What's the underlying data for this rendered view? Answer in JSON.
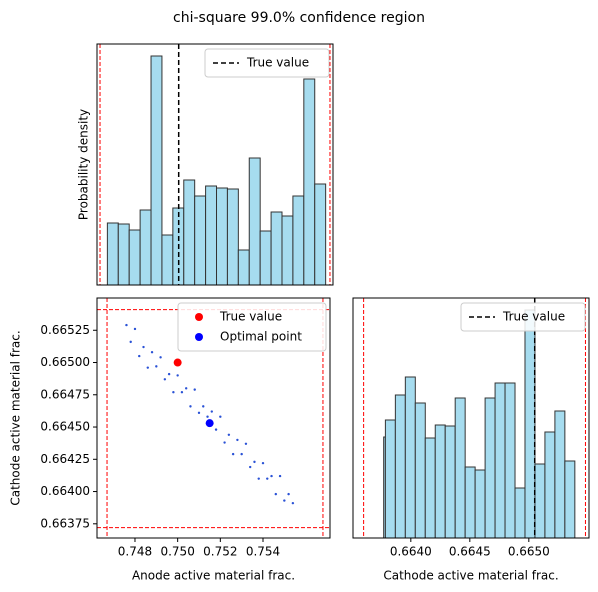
{
  "title": "chi-square 99.0% confidence region",
  "chart_data": [
    {
      "type": "histogram",
      "ylabel": "Probability density",
      "bins": [
        0.7467,
        0.747205,
        0.74771,
        0.748215,
        0.74872,
        0.749225,
        0.74973,
        0.750235,
        0.75074,
        0.751245,
        0.75175,
        0.752255,
        0.75276,
        0.753265,
        0.75377,
        0.754275,
        0.75478,
        0.755285,
        0.75579,
        0.756295,
        0.7568
      ],
      "values": [
        62,
        61,
        55,
        75,
        229,
        50,
        77,
        105,
        89,
        99,
        97,
        96,
        35,
        127,
        54,
        73,
        69,
        89,
        206,
        101
      ],
      "color": "#a6dcef",
      "edgecolor": "#333333",
      "xlim": [
        0.74622,
        0.75714
      ],
      "ylim": [
        0,
        241
      ],
      "vline": {
        "name": "True value",
        "value": 0.75,
        "color": "#000000"
      },
      "bounds": {
        "color": "#ff0000",
        "x": [
          0.74636,
          0.757
        ]
      },
      "legend": "upper right"
    },
    {
      "type": "scatter",
      "xlabel": "Anode active material frac.",
      "ylabel": "Cathode active material frac.",
      "x": [
        0.7476,
        0.7478,
        0.748,
        0.7482,
        0.7484,
        0.7486,
        0.7488,
        0.749,
        0.7492,
        0.7494,
        0.7496,
        0.7498,
        0.75,
        0.7502,
        0.7504,
        0.7506,
        0.7508,
        0.751,
        0.7512,
        0.7514,
        0.7516,
        0.7518,
        0.752,
        0.7522,
        0.7524,
        0.7526,
        0.7528,
        0.753,
        0.7532,
        0.7534,
        0.7536,
        0.7538,
        0.754,
        0.7542,
        0.7544,
        0.7546,
        0.7548,
        0.755,
        0.7552,
        0.7554
      ],
      "y": [
        0.66529,
        0.66516,
        0.66526,
        0.66505,
        0.66512,
        0.66496,
        0.66508,
        0.66497,
        0.66504,
        0.66487,
        0.66491,
        0.66477,
        0.6649,
        0.66477,
        0.6648,
        0.66466,
        0.66479,
        0.66461,
        0.66466,
        0.66458,
        0.66462,
        0.66448,
        0.66458,
        0.66438,
        0.66444,
        0.66429,
        0.6644,
        0.66429,
        0.66437,
        0.66419,
        0.66423,
        0.6641,
        0.66422,
        0.6641,
        0.66412,
        0.66398,
        0.66412,
        0.66393,
        0.66398,
        0.66391
      ],
      "color": "#2a52d6",
      "points": [
        {
          "name": "True value",
          "x": 0.75,
          "y": 0.665,
          "color": "#ff0000"
        },
        {
          "name": "Optimal point",
          "x": 0.7515,
          "y": 0.66453,
          "color": "#0000ff"
        }
      ],
      "xlim": [
        0.74622,
        0.75714
      ],
      "ylim": [
        0.66364,
        0.6655
      ],
      "xticks": [
        0.748,
        {
          "value": 0.75,
          "label": "0.750"
        },
        0.752,
        0.754
      ],
      "yticks": [
        0.66375,
        {
          "value": 0.664,
          "label": "0.66400"
        },
        0.66425,
        {
          "value": 0.6645,
          "label": "0.66450"
        },
        0.66475,
        {
          "value": 0.665,
          "label": "0.66500"
        },
        0.66525
      ],
      "bounds": {
        "color": "#ff0000",
        "x": [
          0.74669,
          0.75681
        ],
        "y": [
          0.66372,
          0.66541
        ]
      },
      "legend": "upper right"
    },
    {
      "type": "histogram",
      "xlabel": "Cathode active material frac.",
      "bins": [
        0.66377,
        0.6637845,
        0.663869,
        0.6639535,
        0.664038,
        0.6641225,
        0.664207,
        0.6642915,
        0.664376,
        0.6644605,
        0.664545,
        0.6646295,
        0.664714,
        0.6647985,
        0.664883,
        0.6649675,
        0.665052,
        0.6651365,
        0.665221,
        0.6653055,
        0.66539
      ],
      "values": [
        101,
        118,
        143,
        161,
        135,
        100,
        113,
        112,
        140,
        71,
        68,
        140,
        155,
        155,
        50,
        228,
        74,
        106,
        127,
        77
      ],
      "color": "#a6dcef",
      "edgecolor": "#333333",
      "xlim": [
        0.66351,
        0.66551
      ],
      "ylim": [
        0,
        240
      ],
      "xticks": [
        {
          "value": 0.664,
          "label": "0.6640"
        },
        0.6645,
        {
          "value": 0.665,
          "label": "0.6650"
        }
      ],
      "vline": {
        "name": "True value",
        "value": 0.66505,
        "color": "#000000"
      },
      "bounds": {
        "color": "#ff0000",
        "x": [
          0.6636,
          0.66548
        ]
      },
      "legend": "upper right"
    }
  ]
}
